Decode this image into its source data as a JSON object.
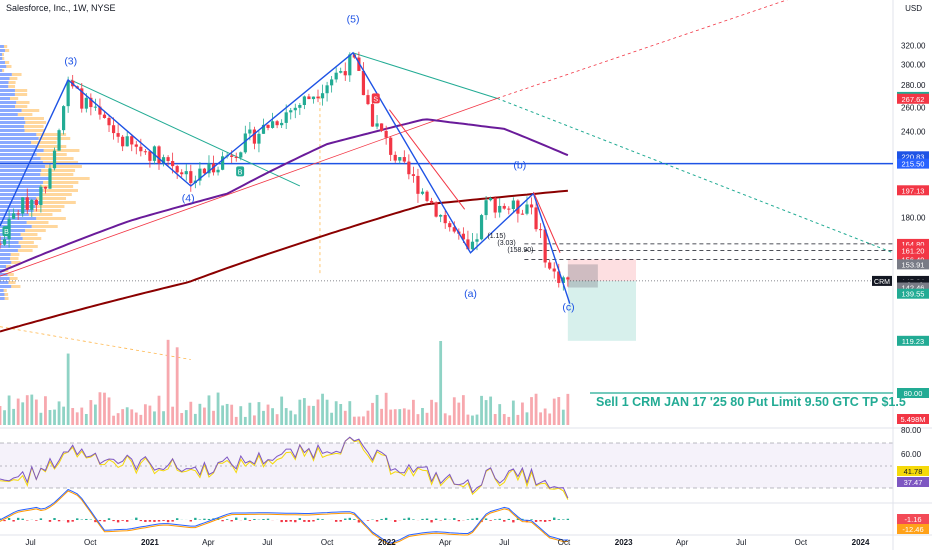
{
  "header": {
    "symbol_title": "Salesforce, Inc., 1W, NYSE",
    "currency": "USD"
  },
  "trade_note": "Sell 1 CRM JAN 17 '25 80 Put Limit 9.50 GTC TP $1.5",
  "colors": {
    "up": "#22ab94",
    "down": "#f23645",
    "volume_up": "#8fd3c5",
    "volume_down": "#f7a8ae",
    "ma_purple": "#6a1b9a",
    "ma_red": "#8b0000",
    "wave_blue": "#1e53e5",
    "accent": "#2962ff"
  },
  "chart_data": {
    "type": "candlestick",
    "title": "Salesforce, Inc., 1W, NYSE",
    "price_axis": {
      "scale": "log",
      "range": [
        90,
        360
      ],
      "ticks": [
        100,
        120,
        140,
        160,
        180,
        200,
        220,
        240,
        260,
        280,
        300,
        320
      ]
    },
    "time_axis": {
      "range": [
        "2020-05-15",
        "2024-02-20"
      ],
      "ticks": [
        {
          "label": "Jul",
          "date": "2020-07-01"
        },
        {
          "label": "Oct",
          "date": "2020-10-01"
        },
        {
          "label": "2021",
          "date": "2021-01-01"
        },
        {
          "label": "Apr",
          "date": "2021-04-01"
        },
        {
          "label": "Jul",
          "date": "2021-07-01"
        },
        {
          "label": "Oct",
          "date": "2021-10-01"
        },
        {
          "label": "2022",
          "date": "2022-01-01"
        },
        {
          "label": "Apr",
          "date": "2022-04-01"
        },
        {
          "label": "Jul",
          "date": "2022-07-01"
        },
        {
          "label": "Oct",
          "date": "2022-10-01"
        },
        {
          "label": "2023",
          "date": "2023-01-01"
        },
        {
          "label": "Apr",
          "date": "2023-04-01"
        },
        {
          "label": "Jul",
          "date": "2023-07-01"
        },
        {
          "label": "Oct",
          "date": "2023-10-01"
        },
        {
          "label": "2024",
          "date": "2024-01-01"
        }
      ]
    },
    "price_path": [
      {
        "date": "2020-05-15",
        "close": 165
      },
      {
        "date": "2020-06-10",
        "close": 185
      },
      {
        "date": "2020-07-20",
        "close": 196
      },
      {
        "date": "2020-08-28",
        "close": 280
      },
      {
        "date": "2020-10-15",
        "close": 250
      },
      {
        "date": "2020-12-01",
        "close": 228
      },
      {
        "date": "2021-01-15",
        "close": 222
      },
      {
        "date": "2021-03-10",
        "close": 205
      },
      {
        "date": "2021-05-01",
        "close": 222
      },
      {
        "date": "2021-07-01",
        "close": 245
      },
      {
        "date": "2021-09-01",
        "close": 268
      },
      {
        "date": "2021-11-10",
        "close": 305
      },
      {
        "date": "2021-12-10",
        "close": 250
      },
      {
        "date": "2022-01-20",
        "close": 215
      },
      {
        "date": "2022-03-01",
        "close": 195
      },
      {
        "date": "2022-05-10",
        "close": 158
      },
      {
        "date": "2022-06-05",
        "close": 190
      },
      {
        "date": "2022-07-20",
        "close": 185
      },
      {
        "date": "2022-08-10",
        "close": 190
      },
      {
        "date": "2022-09-10",
        "close": 150
      },
      {
        "date": "2022-10-05",
        "close": 146
      }
    ],
    "volume": {
      "last_label": "5.498M"
    },
    "wave_labels": [
      {
        "text": "(3)",
        "date": "2020-09-01",
        "price": 300
      },
      {
        "text": "(4)",
        "date": "2021-03-01",
        "price": 190
      },
      {
        "text": "(5)",
        "date": "2021-11-10",
        "price": 345
      },
      {
        "text": "(a)",
        "date": "2022-05-10",
        "price": 138
      },
      {
        "text": "(b)",
        "date": "2022-07-25",
        "price": 212
      },
      {
        "text": "(c)",
        "date": "2022-10-08",
        "price": 132
      }
    ],
    "fib_labels": [
      "(1.15)",
      "(3.03)",
      "(158.90)"
    ],
    "moving_averages": [
      {
        "name": "ma-purple",
        "value": 220.83
      },
      {
        "name": "ma-red",
        "value": 197.13
      }
    ],
    "horizontal_levels": [
      {
        "value": 215.5,
        "style": "solid-blue"
      },
      {
        "value": 164.8,
        "style": "dashed"
      },
      {
        "value": 161.2,
        "style": "dashed"
      },
      {
        "value": 156.49,
        "style": "dashed"
      }
    ],
    "position_tool": {
      "entry": 145.64,
      "stop": 156.49,
      "target": 119.23,
      "start_date": "2022-10-07",
      "end_date": "2023-01-20"
    },
    "price_labels": [
      {
        "text": "320.00",
        "value": 320,
        "kind": "tick"
      },
      {
        "text": "300.00",
        "value": 300,
        "kind": "tick"
      },
      {
        "text": "280.00",
        "value": 280,
        "kind": "tick"
      },
      {
        "text": "269.28",
        "value": 269.28,
        "kind": "badge",
        "color": "#22ab94"
      },
      {
        "text": "267.62",
        "value": 267.62,
        "kind": "badge",
        "color": "#f23645"
      },
      {
        "text": "260.00",
        "value": 260,
        "kind": "tick"
      },
      {
        "text": "240.00",
        "value": 240,
        "kind": "tick"
      },
      {
        "text": "220.83",
        "value": 220.83,
        "kind": "badge",
        "color": "#1e53e5"
      },
      {
        "text": "215.50",
        "value": 215.5,
        "kind": "badge",
        "color": "#2962ff"
      },
      {
        "text": "197.13",
        "value": 197.13,
        "kind": "badge",
        "color": "#f23645"
      },
      {
        "text": "180.00",
        "value": 180,
        "kind": "tick"
      },
      {
        "text": "164.80",
        "value": 164.8,
        "kind": "badge",
        "color": "#f23645"
      },
      {
        "text": "161.20",
        "value": 161.2,
        "kind": "badge",
        "color": "#f23645"
      },
      {
        "text": "156.49",
        "value": 156.49,
        "kind": "badge",
        "color": "#f23645"
      },
      {
        "text": "153.91",
        "value": 153.91,
        "kind": "badge",
        "color": "#787b86"
      },
      {
        "text": "CRM",
        "value": 145.64,
        "kind": "symbol",
        "color": "#131722"
      },
      {
        "text": "145.64",
        "value": 145.64,
        "kind": "badge",
        "color": "#131722"
      },
      {
        "text": "3d 18h",
        "value": 144,
        "kind": "badge",
        "color": "#131722"
      },
      {
        "text": "142.46",
        "value": 142.46,
        "kind": "badge",
        "color": "#787b86"
      },
      {
        "text": "139.55",
        "value": 139.55,
        "kind": "badge",
        "color": "#22ab94"
      },
      {
        "text": "119.23",
        "value": 119.23,
        "kind": "badge",
        "color": "#22ab94"
      },
      {
        "text": "100.00",
        "value": 100,
        "kind": "tick"
      },
      {
        "text": "80.00",
        "value": 80,
        "kind": "badge-bottom",
        "color": "#22ab94"
      }
    ],
    "rsi": {
      "ticks": [
        "80.00",
        "60.00"
      ],
      "badges": [
        {
          "text": "41.78",
          "color": "#f5d90a"
        },
        {
          "text": "37.47",
          "color": "#7e57c2"
        }
      ]
    },
    "macd": {
      "badges": [
        {
          "text": "-1.16",
          "color": "#f23645"
        },
        {
          "text": "-12.46",
          "color": "#ff9800"
        }
      ]
    }
  }
}
